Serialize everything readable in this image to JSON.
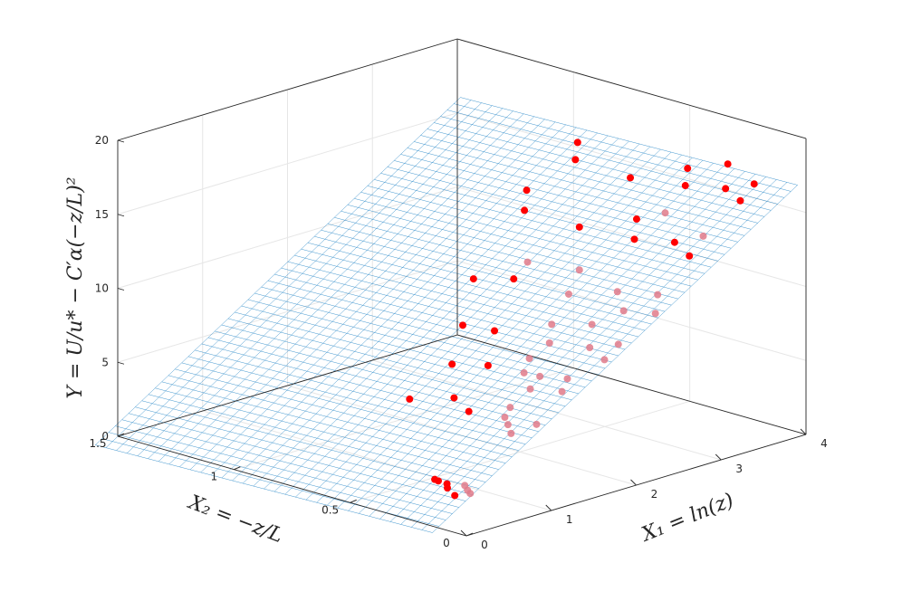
{
  "chart_data": {
    "type": "scatter3d-with-surface",
    "title": "",
    "axes": {
      "x1": {
        "label": "X₁ = ln(z)",
        "range": [
          0,
          4
        ],
        "ticks": [
          0,
          1,
          2,
          3,
          4
        ],
        "tick_labels": [
          "0",
          "1",
          "2",
          "3",
          "4"
        ]
      },
      "x2": {
        "label": "X₂ = −z/L",
        "range": [
          0,
          1.5
        ],
        "ticks": [
          0,
          0.5,
          1,
          1.5
        ],
        "tick_labels": [
          "0",
          "0.5",
          "1",
          "1.5"
        ]
      },
      "y": {
        "label": "Y = U/u* − C′α(−z/L)²",
        "range": [
          0,
          20
        ],
        "ticks": [
          0,
          5,
          10,
          15,
          20
        ],
        "tick_labels": [
          "0",
          "5",
          "10",
          "15",
          "20"
        ]
      }
    },
    "grid": true,
    "surface": {
      "type": "fitted-plane-mesh",
      "color": "#0072bd"
    },
    "points_color": "#ff0000",
    "points": [
      {
        "x1": 0.0,
        "x2": 0.05,
        "y": 2.5
      },
      {
        "x1": 0.05,
        "x2": 0.1,
        "y": 2.7
      },
      {
        "x1": 0.1,
        "x2": 0.02,
        "y": 2.6
      },
      {
        "x1": 0.1,
        "x2": 0.12,
        "y": 2.8
      },
      {
        "x1": 0.15,
        "x2": 0.05,
        "y": 2.6
      },
      {
        "x1": 0.2,
        "x2": 0.08,
        "y": 2.7
      },
      {
        "x1": 0.08,
        "x2": 0.15,
        "y": 2.9
      },
      {
        "x1": 0.12,
        "x2": 0.18,
        "y": 2.8
      },
      {
        "x1": 0.8,
        "x2": 0.1,
        "y": 5.1
      },
      {
        "x1": 0.9,
        "x2": 0.15,
        "y": 5.3
      },
      {
        "x1": 1.0,
        "x2": 0.2,
        "y": 5.4
      },
      {
        "x1": 1.1,
        "x2": 0.1,
        "y": 5.2
      },
      {
        "x1": 0.85,
        "x2": 0.3,
        "y": 5.6
      },
      {
        "x1": 1.2,
        "x2": 0.25,
        "y": 5.5
      },
      {
        "x1": 0.95,
        "x2": 0.4,
        "y": 5.9
      },
      {
        "x1": 0.7,
        "x2": 0.5,
        "y": 5.8
      },
      {
        "x1": 1.3,
        "x2": 0.2,
        "y": 6.8
      },
      {
        "x1": 1.4,
        "x2": 0.1,
        "y": 6.9
      },
      {
        "x1": 1.5,
        "x2": 0.3,
        "y": 7.1
      },
      {
        "x1": 1.6,
        "x2": 0.15,
        "y": 7.2
      },
      {
        "x1": 1.35,
        "x2": 0.4,
        "y": 7.4
      },
      {
        "x1": 1.7,
        "x2": 0.35,
        "y": 7.5
      },
      {
        "x1": 1.2,
        "x2": 0.5,
        "y": 7.3
      },
      {
        "x1": 1.55,
        "x2": 0.25,
        "y": 7.0
      },
      {
        "x1": 1.9,
        "x2": 0.1,
        "y": 8.2
      },
      {
        "x1": 2.0,
        "x2": 0.2,
        "y": 8.4
      },
      {
        "x1": 1.8,
        "x2": 0.3,
        "y": 8.6
      },
      {
        "x1": 2.1,
        "x2": 0.4,
        "y": 8.9
      },
      {
        "x1": 1.7,
        "x2": 0.5,
        "y": 8.7
      },
      {
        "x1": 2.2,
        "x2": 0.15,
        "y": 8.5
      },
      {
        "x1": 1.6,
        "x2": 0.6,
        "y": 8.8
      },
      {
        "x1": 2.3,
        "x2": 0.3,
        "y": 9.0
      },
      {
        "x1": 2.4,
        "x2": 0.2,
        "y": 10.2
      },
      {
        "x1": 2.5,
        "x2": 0.1,
        "y": 10.3
      },
      {
        "x1": 2.3,
        "x2": 0.4,
        "y": 10.6
      },
      {
        "x1": 2.6,
        "x2": 0.3,
        "y": 10.7
      },
      {
        "x1": 2.2,
        "x2": 0.6,
        "y": 10.9
      },
      {
        "x1": 2.7,
        "x2": 0.5,
        "y": 11.1
      },
      {
        "x1": 2.0,
        "x2": 0.7,
        "y": 10.8
      },
      {
        "x1": 2.8,
        "x2": 0.2,
        "y": 10.6
      },
      {
        "x1": 2.5,
        "x2": 0.65,
        "y": 11.3
      },
      {
        "x1": 2.9,
        "x2": 0.1,
        "y": 13.5
      },
      {
        "x1": 3.0,
        "x2": 0.2,
        "y": 13.8
      },
      {
        "x1": 2.8,
        "x2": 0.3,
        "y": 13.9
      },
      {
        "x1": 3.1,
        "x2": 0.4,
        "y": 14.3
      },
      {
        "x1": 2.7,
        "x2": 0.5,
        "y": 14.0
      },
      {
        "x1": 3.2,
        "x2": 0.15,
        "y": 14.1
      },
      {
        "x1": 2.6,
        "x2": 0.7,
        "y": 14.4
      },
      {
        "x1": 3.3,
        "x2": 0.35,
        "y": 14.6
      },
      {
        "x1": 2.9,
        "x2": 0.8,
        "y": 14.8
      },
      {
        "x1": 3.5,
        "x2": 0.1,
        "y": 16.2
      },
      {
        "x1": 3.6,
        "x2": 0.2,
        "y": 16.4
      },
      {
        "x1": 3.4,
        "x2": 0.3,
        "y": 16.5
      },
      {
        "x1": 3.7,
        "x2": 0.4,
        "y": 16.7
      },
      {
        "x1": 3.3,
        "x2": 0.5,
        "y": 16.3
      },
      {
        "x1": 3.8,
        "x2": 0.15,
        "y": 16.6
      },
      {
        "x1": 3.2,
        "x2": 0.7,
        "y": 16.8
      },
      {
        "x1": 3.5,
        "x2": 0.8,
        "y": 17.0
      },
      {
        "x1": 3.9,
        "x2": 0.3,
        "y": 17.1
      }
    ]
  }
}
